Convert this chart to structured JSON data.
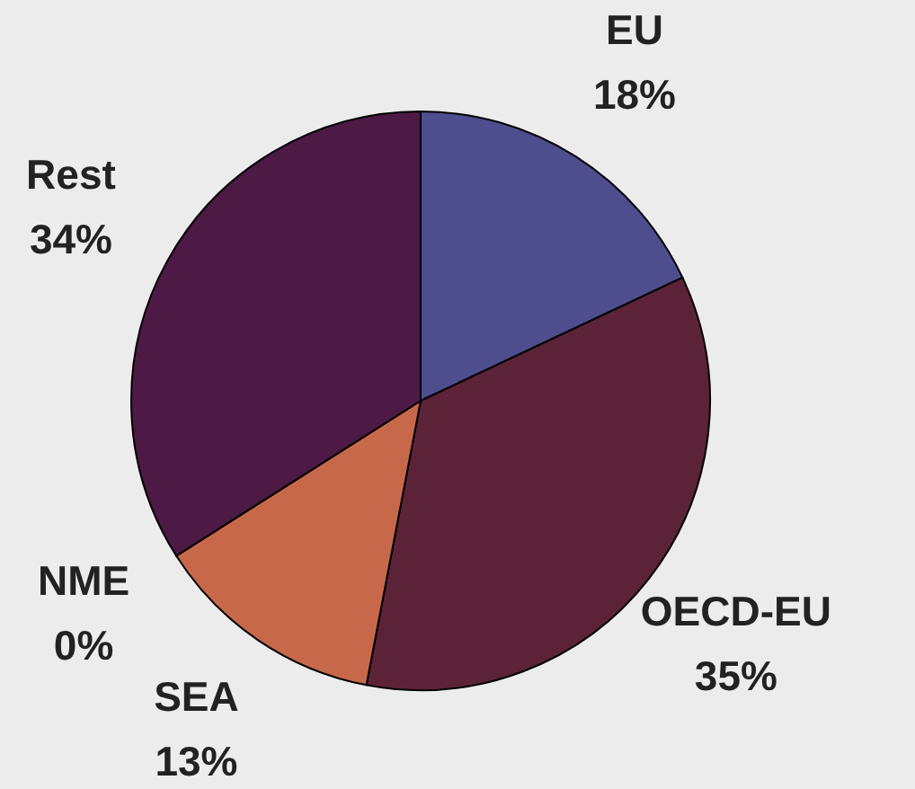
{
  "chart_data": {
    "type": "pie",
    "categories": [
      "EU",
      "OECD-EU",
      "SEA",
      "NME",
      "Rest"
    ],
    "values": [
      18,
      35,
      13,
      0,
      34
    ],
    "value_labels": [
      "18%",
      "35%",
      "13%",
      "0%",
      "34%"
    ],
    "colors": [
      "#4e4e8e",
      "#5c2338",
      "#c8684a",
      "#9fc9c9",
      "#4c1a44"
    ]
  }
}
